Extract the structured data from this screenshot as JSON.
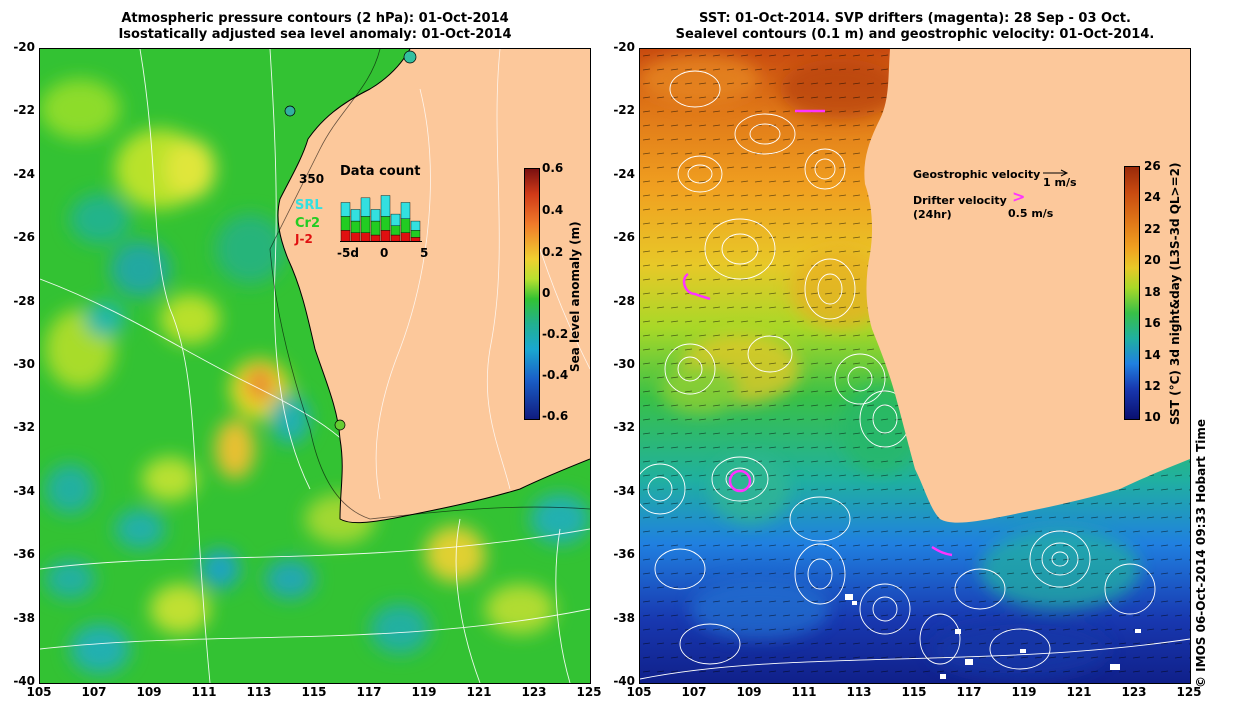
{
  "left_panel": {
    "title_line1": "Atmospheric pressure contours (2 hPa): 01-Oct-2014",
    "title_line2": "Isostatically adjusted sea level anomaly: 01-Oct-2014",
    "inset": {
      "title": "Data count",
      "max_label": "350",
      "legend": [
        "SRL",
        "Cr2",
        "J-2"
      ],
      "xticks": [
        "-5d",
        "0",
        "5"
      ],
      "legend_colors": [
        "#33e0e0",
        "#22cc22",
        "#e01010"
      ]
    },
    "colorbar": {
      "label": "Sea level anomaly (m)",
      "ticks": [
        "0.6",
        "0.4",
        "0.2",
        "0",
        "-0.2",
        "-0.4",
        "-0.6"
      ]
    }
  },
  "right_panel": {
    "title_line1": "SST: 01-Oct-2014. SVP drifters (magenta): 28 Sep - 03 Oct.",
    "title_line2": "Sealevel contours (0.1 m) and geostrophic velocity: 01-Oct-2014.",
    "legend_geo": "Geostrophic velocity",
    "legend_geo_value": "1 m/s",
    "legend_drifter": "Drifter velocity",
    "legend_drifter_sub": "(24hr)",
    "legend_drifter_value": "0.5 m/s",
    "colorbar": {
      "label": "SST (°C) 3d night&day (L3S-3d QL>=2)",
      "ticks": [
        "26",
        "24",
        "22",
        "20",
        "18",
        "16",
        "14",
        "12",
        "10"
      ]
    }
  },
  "axes": {
    "y_ticks": [
      "-20",
      "-22",
      "-24",
      "-26",
      "-28",
      "-30",
      "-32",
      "-34",
      "-36",
      "-38",
      "-40"
    ],
    "x_ticks": [
      "105",
      "107",
      "109",
      "111",
      "113",
      "115",
      "117",
      "119",
      "121",
      "123",
      "125"
    ]
  },
  "credit": "© IMOS 06-Oct-2014 09:33 Hobart Time",
  "colors": {
    "land": "#fcc89b",
    "magenta": "#ff33ff"
  }
}
